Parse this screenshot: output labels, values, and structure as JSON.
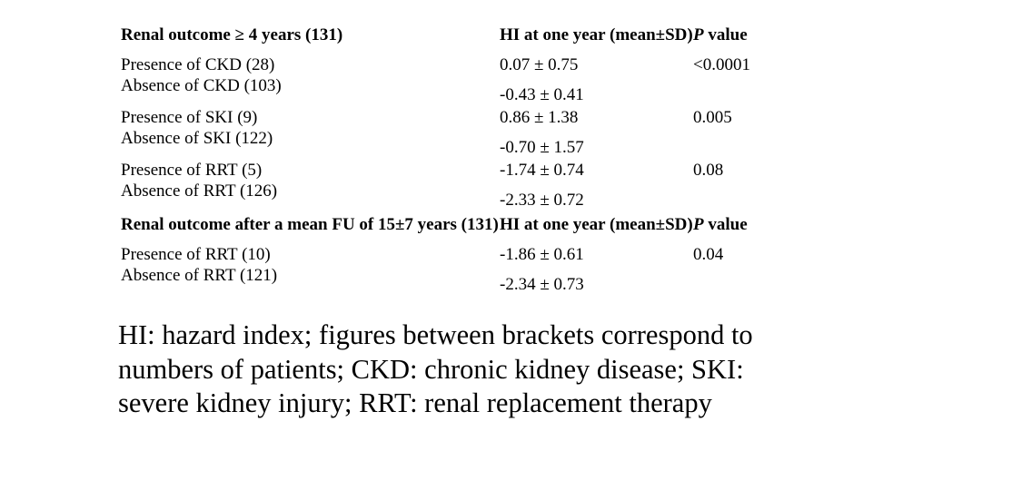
{
  "colors": {
    "text": "#000000",
    "background": "#ffffff"
  },
  "table": {
    "sections": [
      {
        "header": {
          "outcome": "Renal outcome ≥ 4 years (131)",
          "hi": "HI at one year (mean±SD)",
          "p_italic": "P",
          "p_rest": " value"
        },
        "groups": [
          {
            "labels": [
              "Presence of CKD (28)",
              "Absence of CKD (103)"
            ],
            "values": [
              "0.07 ± 0.75",
              "-0.43 ± 0.41"
            ],
            "p": "<0.0001"
          },
          {
            "labels": [
              "Presence of SKI (9)",
              "Absence of SKI (122)"
            ],
            "values": [
              "0.86 ± 1.38",
              "-0.70 ± 1.57"
            ],
            "p": "0.005"
          },
          {
            "labels": [
              "Presence of RRT (5)",
              "Absence of RRT (126)"
            ],
            "values": [
              "-1.74 ± 0.74",
              "-2.33 ± 0.72"
            ],
            "p": "0.08"
          }
        ]
      },
      {
        "header": {
          "outcome": "Renal outcome after a mean FU of 15±7 years (131)",
          "hi": "HI at one year (mean±SD)",
          "p_italic": "P",
          "p_rest": " value"
        },
        "groups": [
          {
            "labels": [
              "Presence of RRT (10)",
              "Absence of RRT (121)"
            ],
            "values": [
              "-1.86 ± 0.61",
              "-2.34 ± 0.73"
            ],
            "p": "0.04"
          }
        ]
      }
    ]
  },
  "footnote": {
    "lines": [
      "HI: hazard index; figures between brackets correspond to",
      "numbers of patients; CKD: chronic kidney disease; SKI:",
      "severe kidney injury; RRT: renal replacement therapy"
    ]
  }
}
